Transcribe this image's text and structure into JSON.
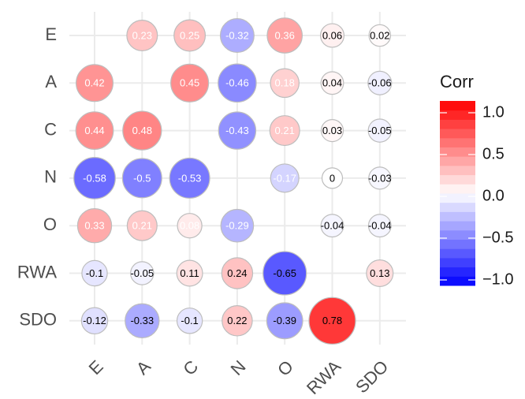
{
  "chart_data": {
    "type": "corrplot",
    "x_categories": [
      "E",
      "A",
      "C",
      "N",
      "O",
      "RWA",
      "SDO"
    ],
    "y_categories": [
      "E",
      "A",
      "C",
      "N",
      "O",
      "RWA",
      "SDO"
    ],
    "values": [
      [
        null,
        0.23,
        0.25,
        -0.32,
        0.36,
        0.06,
        0.02
      ],
      [
        0.42,
        null,
        0.45,
        -0.46,
        0.18,
        0.04,
        -0.06
      ],
      [
        0.44,
        0.48,
        null,
        -0.43,
        0.21,
        0.03,
        -0.05
      ],
      [
        -0.58,
        -0.5,
        -0.53,
        null,
        -0.17,
        0,
        -0.03
      ],
      [
        0.33,
        0.21,
        0.08,
        -0.29,
        null,
        -0.04,
        -0.04
      ],
      [
        -0.1,
        -0.05,
        0.11,
        0.24,
        -0.65,
        null,
        0.13
      ],
      [
        -0.12,
        -0.33,
        -0.1,
        0.22,
        -0.39,
        0.78,
        null
      ]
    ],
    "legend_title": "Corr",
    "color_scale": [
      "#0000ff",
      "#ffffff",
      "#ff0000"
    ],
    "colorbar_lim": [
      -1,
      1
    ],
    "colorbar_ticks": [
      {
        "value": 1,
        "label": "1.0"
      },
      0.5,
      {
        "value": 0,
        "label": "0.0"
      },
      {
        "value": -0.5,
        "label": "−0.5"
      },
      {
        "value": -1,
        "label": "−1.0"
      }
    ],
    "grid": true
  }
}
